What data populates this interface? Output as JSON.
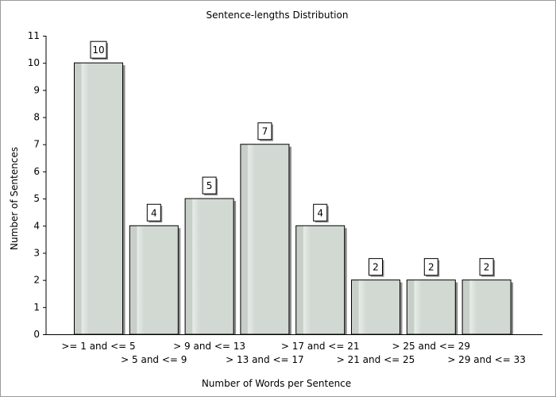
{
  "chart_data": {
    "type": "bar",
    "title": "Sentence-lengths Distribution",
    "xlabel": "Number of Words per Sentence",
    "ylabel": "Number of Sentences",
    "categories": [
      ">= 1 and <= 5",
      "> 5 and <= 9",
      "> 9 and <= 13",
      "> 13 and <= 17",
      "> 17 and <= 21",
      "> 21 and <= 25",
      "> 25 and <= 29",
      "> 29 and <= 33"
    ],
    "values": [
      10,
      4,
      5,
      7,
      4,
      2,
      2,
      2
    ],
    "ylim": [
      0,
      11
    ],
    "yticks": [
      "0",
      "1",
      "2",
      "3",
      "4",
      "5",
      "6",
      "7",
      "8",
      "9",
      "10",
      "11"
    ],
    "grid": false,
    "legend": "none",
    "colors": {
      "bar_fill": "#d2d9d3",
      "bar_highlight": "#e6ebe6",
      "bar_stroke": "#000000",
      "shadow": "#8c8c8c"
    }
  }
}
